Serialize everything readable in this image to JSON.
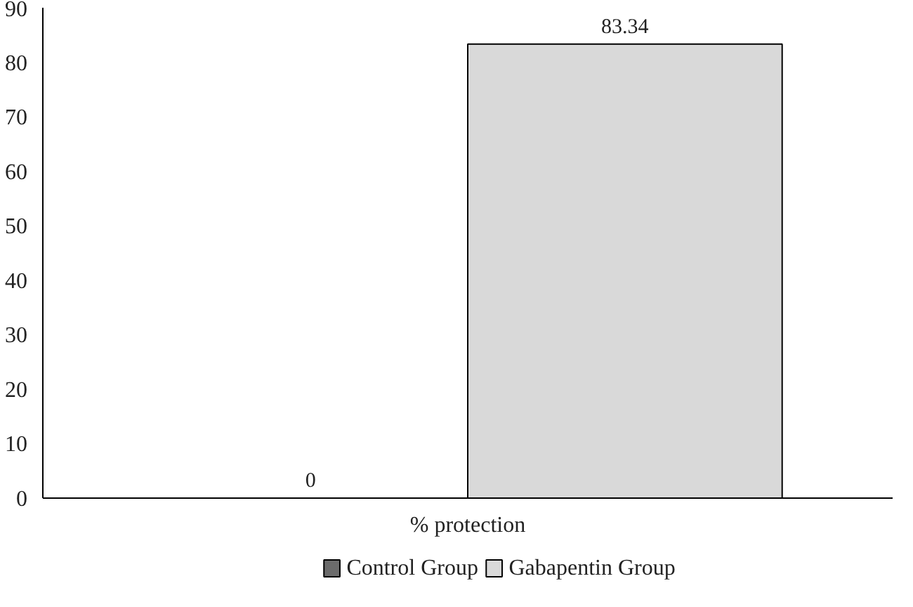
{
  "chart_data": {
    "type": "bar",
    "categories": [
      "% protection"
    ],
    "series": [
      {
        "name": "Control Group",
        "color": "#6b6b6b",
        "values": [
          0
        ]
      },
      {
        "name": "Gabapentin Group",
        "color": "#d9d9d9",
        "values": [
          83.34
        ]
      }
    ],
    "ylim": [
      0,
      90
    ],
    "yticks": [
      0,
      10,
      20,
      30,
      40,
      50,
      60,
      70,
      80,
      90
    ],
    "grid": false,
    "legend": "bottom",
    "data_labels": true
  }
}
